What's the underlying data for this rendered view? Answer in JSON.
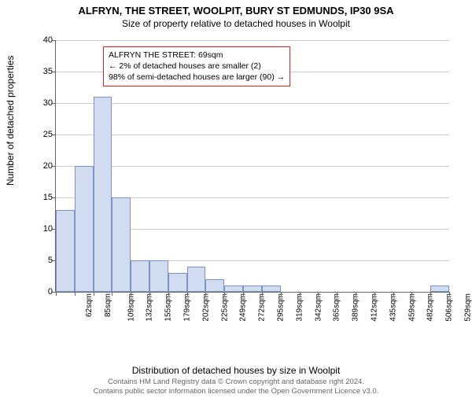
{
  "title": "ALFRYN, THE STREET, WOOLPIT, BURY ST EDMUNDS, IP30 9SA",
  "subtitle": "Size of property relative to detached houses in Woolpit",
  "y_axis_label": "Number of detached properties",
  "x_axis_label": "Distribution of detached houses by size in Woolpit",
  "footer_line1": "Contains HM Land Registry data © Crown copyright and database right 2024.",
  "footer_line2": "Contains public sector information licensed under the Open Government Licence v3.0.",
  "chart": {
    "type": "histogram",
    "background_color": "#ffffff",
    "grid_color": "#cccccc",
    "axis_color": "#666666",
    "bar_fill": "#d1dcf0",
    "bar_stroke": "#7a93c8",
    "bar_stroke_width": 1,
    "ylim": [
      0,
      40
    ],
    "yticks": [
      0,
      5,
      10,
      15,
      20,
      25,
      30,
      35,
      40
    ],
    "x_tick_labels": [
      "62sqm",
      "85sqm",
      "109sqm",
      "132sqm",
      "155sqm",
      "179sqm",
      "202sqm",
      "225sqm",
      "249sqm",
      "272sqm",
      "295sqm",
      "319sqm",
      "342sqm",
      "365sqm",
      "389sqm",
      "412sqm",
      "435sqm",
      "459sqm",
      "482sqm",
      "506sqm",
      "529sqm"
    ],
    "bar_values": [
      13,
      20,
      31,
      15,
      5,
      5,
      3,
      4,
      2,
      1,
      1,
      1,
      0,
      0,
      0,
      0,
      0,
      0,
      0,
      0,
      1
    ],
    "tick_fontsize": 11,
    "label_fontsize": 12,
    "title_fontsize": 13
  },
  "callout": {
    "border_color": "#e02020",
    "text_color": "#000000",
    "line1": "ALFRYN THE STREET: 69sqm",
    "line2": "← 2% of detached houses are smaller (2)",
    "line3": "98% of semi-detached houses are larger (90) →"
  }
}
